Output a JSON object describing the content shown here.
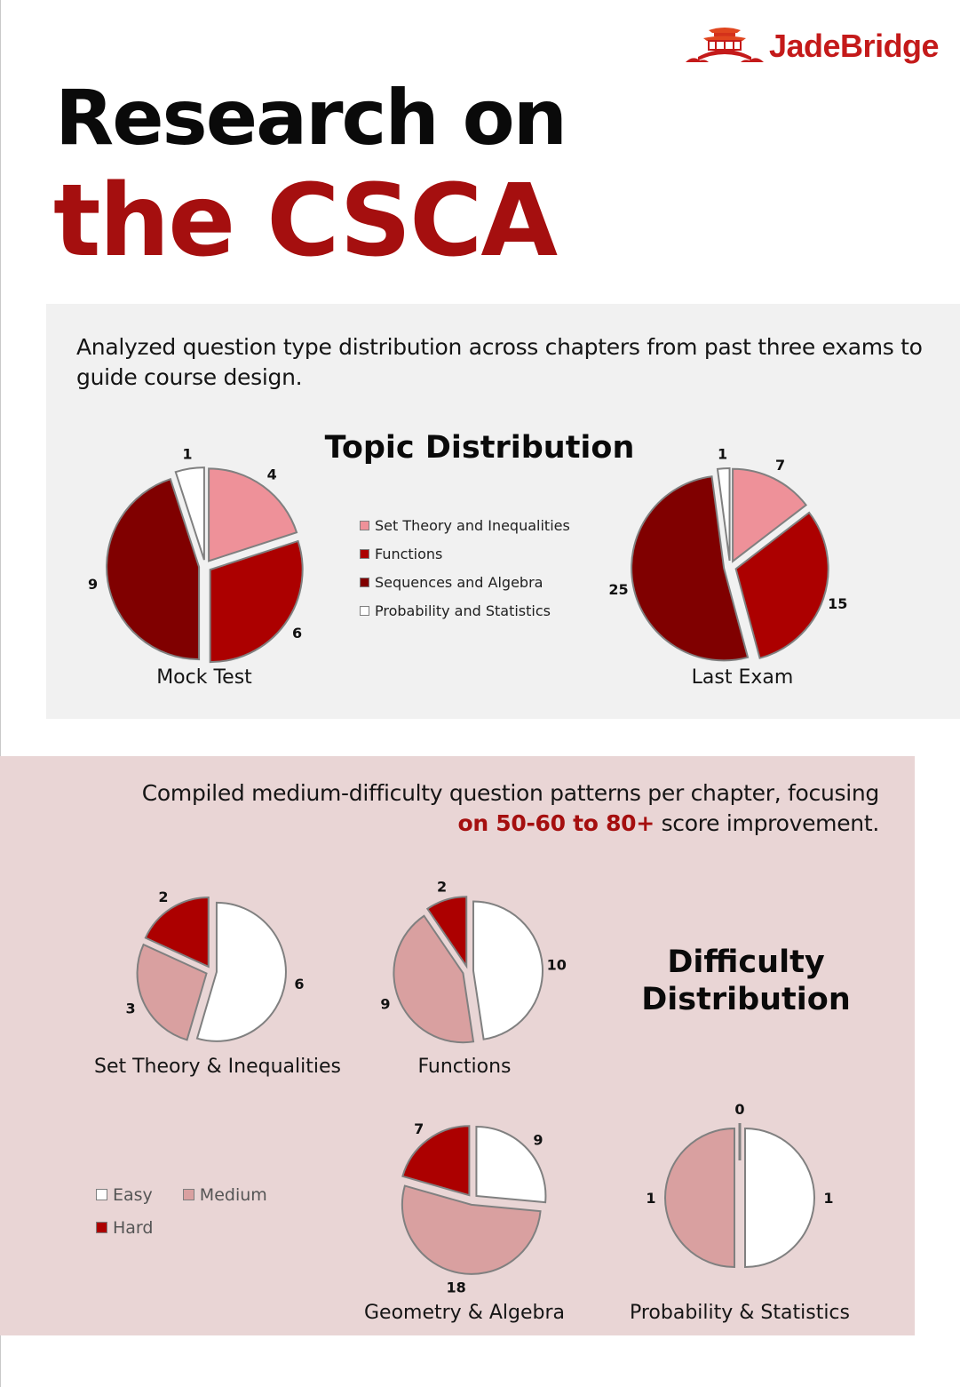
{
  "brand": {
    "name": "JadeBridge",
    "logo_icon": "pavilion-bridge-icon",
    "color": "#c41a1a"
  },
  "header": {
    "title_line1": "Research on",
    "title_line2": "the CSCA"
  },
  "colors": {
    "title_red": "#a50f0f",
    "panel1_bg": "#f1f1f1",
    "panel2_bg": "#e9d5d5",
    "set_theory": "#ee9199",
    "functions": "#ac0000",
    "sequences": "#800000",
    "probability": "#ffffff",
    "easy": "#ffffff",
    "medium": "#d9a0a0",
    "hard": "#ac0000",
    "slice_border": "#808080"
  },
  "topic_section": {
    "description": "Analyzed question type distribution across chapters from past three exams to guide course design.",
    "title": "Topic Distribution",
    "legend": [
      {
        "label": "Set Theory and Inequalities",
        "color": "#ee9199"
      },
      {
        "label": "Functions",
        "color": "#ac0000"
      },
      {
        "label": "Sequences and Algebra",
        "color": "#800000"
      },
      {
        "label": "Probability and Statistics",
        "color": "#ffffff"
      }
    ]
  },
  "difficulty_section": {
    "description_plain": "Compiled medium-difficulty question patterns per chapter, focusing",
    "description_highlight": "on 50-60 to 80+",
    "description_tail": " score improvement.",
    "title_line1": "Difficulty",
    "title_line2": "Distribution",
    "legend": [
      {
        "label": "Easy",
        "color": "#ffffff"
      },
      {
        "label": "Medium",
        "color": "#d9a0a0"
      },
      {
        "label": "Hard",
        "color": "#ac0000"
      }
    ]
  },
  "chart_data": [
    {
      "type": "pie",
      "title": "Mock Test",
      "group": "Topic Distribution",
      "categories": [
        "Set Theory and Inequalities",
        "Functions",
        "Sequences and Algebra",
        "Probability and Statistics"
      ],
      "values": [
        4,
        6,
        9,
        1
      ],
      "colors": [
        "#ee9199",
        "#ac0000",
        "#800000",
        "#ffffff"
      ],
      "exploded": true,
      "data_labels": true
    },
    {
      "type": "pie",
      "title": "Last Exam",
      "group": "Topic Distribution",
      "categories": [
        "Set Theory and Inequalities",
        "Functions",
        "Sequences and Algebra",
        "Probability and Statistics"
      ],
      "values": [
        7,
        15,
        25,
        1
      ],
      "colors": [
        "#ee9199",
        "#ac0000",
        "#800000",
        "#ffffff"
      ],
      "exploded": true,
      "data_labels": true
    },
    {
      "type": "pie",
      "title": "Set Theory & Inequalities",
      "group": "Difficulty Distribution",
      "categories": [
        "Easy",
        "Medium",
        "Hard"
      ],
      "values": [
        6,
        3,
        2
      ],
      "colors": [
        "#ffffff",
        "#d9a0a0",
        "#ac0000"
      ],
      "exploded": true,
      "data_labels": true
    },
    {
      "type": "pie",
      "title": "Functions",
      "group": "Difficulty Distribution",
      "categories": [
        "Easy",
        "Medium",
        "Hard"
      ],
      "values": [
        10,
        9,
        2
      ],
      "colors": [
        "#ffffff",
        "#d9a0a0",
        "#ac0000"
      ],
      "exploded": true,
      "data_labels": true
    },
    {
      "type": "pie",
      "title": "Geometry & Algebra",
      "group": "Difficulty Distribution",
      "categories": [
        "Easy",
        "Medium",
        "Hard"
      ],
      "values": [
        9,
        18,
        7
      ],
      "colors": [
        "#ffffff",
        "#d9a0a0",
        "#ac0000"
      ],
      "exploded": true,
      "data_labels": true
    },
    {
      "type": "pie",
      "title": "Probability & Statistics",
      "group": "Difficulty Distribution",
      "categories": [
        "Easy",
        "Medium",
        "Hard"
      ],
      "values": [
        1,
        1,
        0
      ],
      "colors": [
        "#ffffff",
        "#d9a0a0",
        "#ac0000"
      ],
      "exploded": true,
      "data_labels": true
    }
  ]
}
